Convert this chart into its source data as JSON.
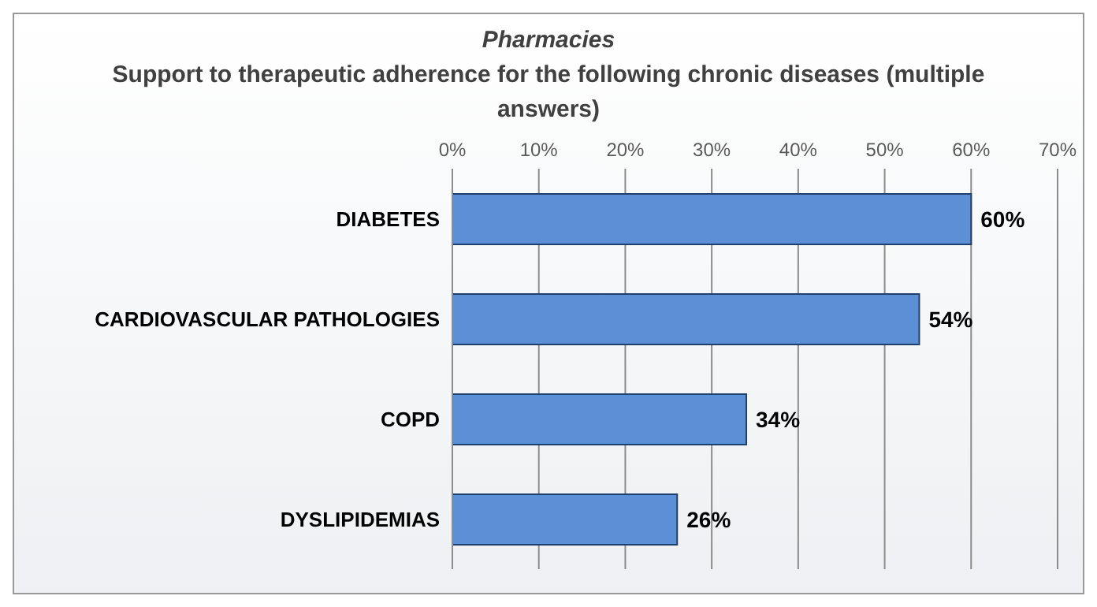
{
  "chart_data": {
    "type": "bar",
    "orientation": "horizontal",
    "title": "Pharmacies",
    "subtitle": "Support to therapeutic adherence for the following chronic diseases (multiple answers)",
    "categories": [
      "DIABETES",
      "CARDIOVASCULAR   PATHOLOGIES",
      "COPD",
      "DYSLIPIDEMIAS"
    ],
    "values": [
      60,
      54,
      34,
      26
    ],
    "color": "#5b8fd6",
    "value_labels": [
      "60%",
      "54%",
      "34%",
      "26%"
    ],
    "xlim": [
      0,
      70
    ],
    "xticks": [
      {
        "value": 0,
        "label": "0%"
      },
      {
        "value": 10,
        "label": "10%"
      },
      {
        "value": 20,
        "label": "20%"
      },
      {
        "value": 30,
        "label": "30%"
      },
      {
        "value": 40,
        "label": "40%"
      },
      {
        "value": 50,
        "label": "50%"
      },
      {
        "value": 60,
        "label": "60%"
      },
      {
        "value": 70,
        "label": "70%"
      }
    ],
    "grid": "x",
    "legend": false
  }
}
